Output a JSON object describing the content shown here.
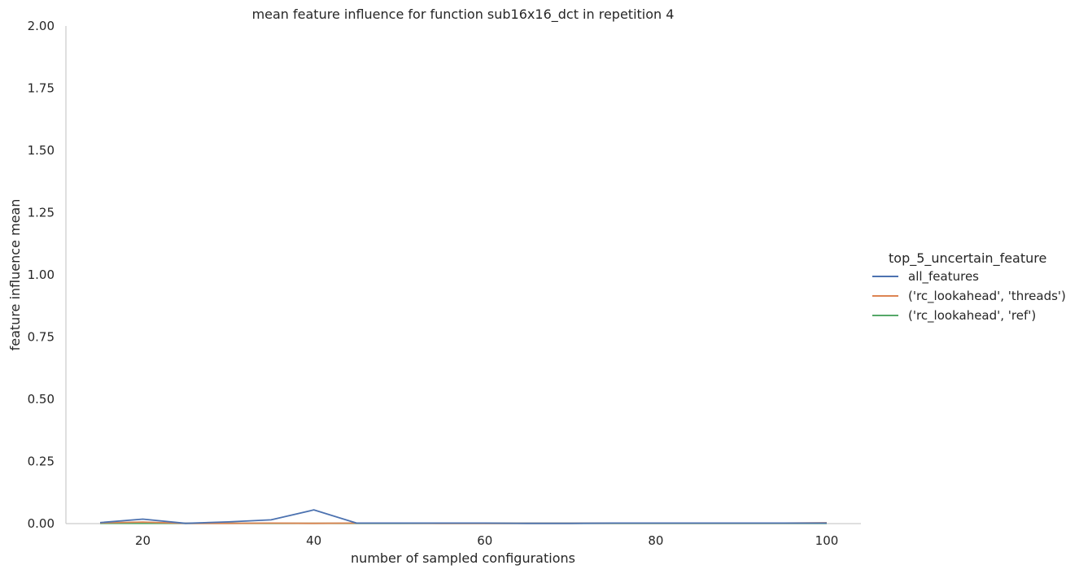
{
  "chart_data": {
    "type": "line",
    "title": "mean feature influence for function sub16x16_dct in repetition 4",
    "xlabel": "number of sampled configurations",
    "ylabel": "feature influence mean",
    "xlim": [
      11,
      104
    ],
    "ylim": [
      0,
      2
    ],
    "xticks": [
      20,
      40,
      60,
      80,
      100
    ],
    "yticks": [
      "0.00",
      "0.25",
      "0.50",
      "0.75",
      "1.00",
      "1.25",
      "1.50",
      "1.75",
      "2.00"
    ],
    "grid": false,
    "legend": {
      "title": "top_5_uncertain_feature",
      "placement": "right"
    },
    "x": [
      15,
      20,
      25,
      30,
      35,
      40,
      45,
      50,
      55,
      60,
      65,
      70,
      75,
      80,
      85,
      90,
      95,
      100
    ],
    "series": [
      {
        "name": "all_features",
        "color": "#4c72b0",
        "values": [
          0.004,
          0.018,
          0.001,
          0.007,
          0.015,
          0.055,
          0.002,
          0.002,
          0.002,
          0.002,
          0.001,
          0.001,
          0.002,
          0.002,
          0.002,
          0.002,
          0.002,
          0.002
        ]
      },
      {
        "name": "('rc_lookahead', 'threads')",
        "color": "#dd8452",
        "values": [
          0.003,
          0.006,
          0.001,
          0.001,
          0.002,
          0.001,
          0.002,
          0.002,
          0.001,
          0.001,
          0.001,
          0.001,
          0.002,
          0.002,
          0.002,
          0.002,
          0.002,
          0.003
        ]
      },
      {
        "name": "('rc_lookahead', 'ref')",
        "color": "#55a868",
        "values": [
          0.001,
          0.001,
          0.001,
          0.001,
          0.001,
          0.001,
          0.001,
          0.001,
          0.001,
          0.001,
          0.001,
          0.001,
          0.001,
          0.001,
          0.001,
          0.001,
          0.001,
          0.001
        ]
      }
    ]
  }
}
